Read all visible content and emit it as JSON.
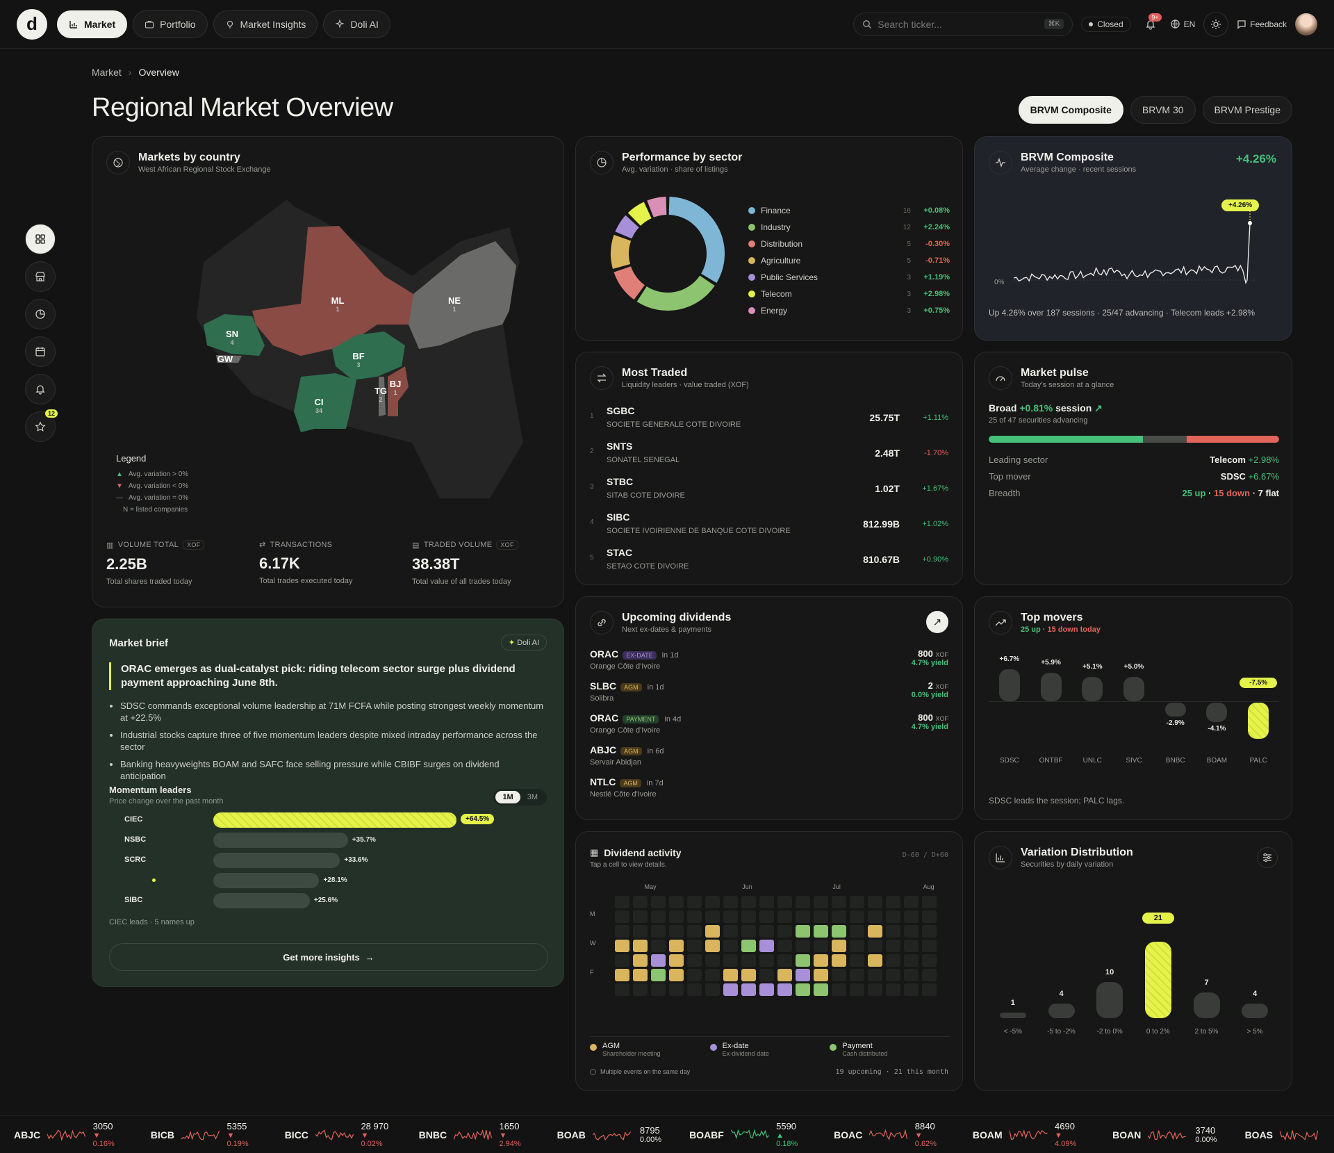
{
  "nav": {
    "logo": "d",
    "tabs": [
      {
        "label": "Market",
        "active": true
      },
      {
        "label": "Portfolio"
      },
      {
        "label": "Market Insights"
      },
      {
        "label": "Doli AI"
      }
    ],
    "search_placeholder": "Search ticker...",
    "search_kbd": "⌘K",
    "market_status": "Closed",
    "notif_badge": "9+",
    "lang": "EN",
    "feedback": "Feedback"
  },
  "sidebar": {
    "favorites_count": "12"
  },
  "breadcrumb": {
    "root": "Market",
    "current": "Overview"
  },
  "page_title": "Regional Market Overview",
  "index_tabs": [
    {
      "label": "BRVM Composite",
      "active": true
    },
    {
      "label": "BRVM 30"
    },
    {
      "label": "BRVM Prestige"
    }
  ],
  "markets": {
    "title": "Markets by country",
    "subtitle": "West African Regional Stock Exchange",
    "countries": [
      {
        "code": "ML",
        "n": "1",
        "state": "down"
      },
      {
        "code": "NE",
        "n": "1",
        "state": "flat"
      },
      {
        "code": "SN",
        "n": "4",
        "state": "up"
      },
      {
        "code": "GW",
        "n": "",
        "state": "flat"
      },
      {
        "code": "BF",
        "n": "3",
        "state": "up"
      },
      {
        "code": "CI",
        "n": "34",
        "state": "up"
      },
      {
        "code": "TG",
        "n": "2",
        "state": "flat"
      },
      {
        "code": "BJ",
        "n": "1",
        "state": "down"
      }
    ],
    "legend": {
      "title": "Legend",
      "up": "Avg. variation > 0%",
      "down": "Avg. variation < 0%",
      "flat": "Avg. variation = 0%",
      "note": "N = listed companies"
    },
    "stats": [
      {
        "label": "Volume total",
        "tag": "XOF",
        "value": "2.25B",
        "desc": "Total shares traded today"
      },
      {
        "label": "Transactions",
        "tag": "",
        "value": "6.17K",
        "desc": "Total trades executed today"
      },
      {
        "label": "Traded volume",
        "tag": "XOF",
        "value": "38.38T",
        "desc": "Total value of all trades today"
      }
    ]
  },
  "sectors": {
    "title": "Performance by sector",
    "subtitle": "Avg. variation · share of listings",
    "items": [
      {
        "name": "Finance",
        "count": 16,
        "change": "+0.08%",
        "color": "#7fb6d6"
      },
      {
        "name": "Industry",
        "count": 12,
        "change": "+2.24%",
        "color": "#8dc46f"
      },
      {
        "name": "Distribution",
        "count": 5,
        "change": "-0.30%",
        "color": "#e07f78"
      },
      {
        "name": "Agriculture",
        "count": 5,
        "change": "-0.71%",
        "color": "#d9b55e"
      },
      {
        "name": "Public Services",
        "count": 3,
        "change": "+1.19%",
        "color": "#a890d8"
      },
      {
        "name": "Telecom",
        "count": 3,
        "change": "+2.98%",
        "color": "#e4f24a"
      },
      {
        "name": "Energy",
        "count": 3,
        "change": "+0.75%",
        "color": "#d98fb6"
      }
    ]
  },
  "composite": {
    "title": "BRVM Composite",
    "subtitle": "Average change · recent sessions",
    "change": "+4.26%",
    "tooltip": "+4.26%",
    "zero_label": "0%",
    "summary": "Up 4.26% over 187 sessions · 25/47 advancing · Telecom leads +2.98%"
  },
  "most_traded": {
    "title": "Most Traded",
    "subtitle": "Liquidity leaders · value traded (XOF)",
    "rows": [
      {
        "rank": "1",
        "ticker": "SGBC",
        "name": "SOCIETE GENERALE COTE DIVOIRE",
        "value": "25.75T",
        "change": "+1.11%"
      },
      {
        "rank": "2",
        "ticker": "SNTS",
        "name": "SONATEL SENEGAL",
        "value": "2.48T",
        "change": "-1.70%"
      },
      {
        "rank": "3",
        "ticker": "STBC",
        "name": "SITAB COTE DIVOIRE",
        "value": "1.02T",
        "change": "+1.67%"
      },
      {
        "rank": "4",
        "ticker": "SIBC",
        "name": "SOCIETE IVOIRIENNE DE BANQUE COTE DIVOIRE",
        "value": "812.99B",
        "change": "+1.02%"
      },
      {
        "rank": "5",
        "ticker": "STAC",
        "name": "SETAO COTE DIVOIRE",
        "value": "810.67B",
        "change": "+0.90%"
      }
    ]
  },
  "pulse": {
    "title": "Market pulse",
    "subtitle": "Today's session at a glance",
    "headline_a": "Broad",
    "headline_b": "+0.81%",
    "headline_c": "session",
    "advancing": "25 of 47 securities advancing",
    "leading_label": "Leading sector",
    "leading_value": "Telecom",
    "leading_change": "+2.98%",
    "mover_label": "Top mover",
    "mover_value": "SDSC",
    "mover_change": "+6.67%",
    "breadth_label": "Breadth",
    "up": "25 up",
    "sep1": "·",
    "down": "15 down",
    "sep2": "·",
    "flat": "7 flat",
    "bar": {
      "up": 25,
      "flat": 7,
      "down": 15
    }
  },
  "brief": {
    "title": "Market brief",
    "tag": "Doli AI",
    "headline": "ORAC emerges as dual-catalyst pick: riding telecom sector surge plus dividend payment approaching June 8th.",
    "bullets": [
      "SDSC commands exceptional volume leadership at 71M FCFA while posting strongest weekly momentum at +22.5%",
      "Industrial stocks capture three of five momentum leaders despite mixed intraday performance across the sector",
      "Banking heavyweights BOAM and SAFC face selling pressure while CBIBF surges on dividend anticipation"
    ],
    "momentum_title": "Momentum leaders",
    "momentum_sub": "Price change over the past month",
    "periods": [
      "1M",
      "3M"
    ],
    "leaders": [
      {
        "name": "CIEC",
        "value": 64.5,
        "label": "+64.5%"
      },
      {
        "name": "NSBC",
        "value": 35.7,
        "label": "+35.7%"
      },
      {
        "name": "SCRC",
        "value": 33.6,
        "label": "+33.6%"
      },
      {
        "name": "",
        "value": 28.1,
        "label": "+28.1%"
      },
      {
        "name": "SIBC",
        "value": 25.6,
        "label": "+25.6%"
      }
    ],
    "footer": "CIEC leads · 5 names up",
    "cta": "Get more insights"
  },
  "dividends": {
    "title": "Upcoming dividends",
    "subtitle": "Next ex-dates & payments",
    "rows": [
      {
        "ticker": "ORAC",
        "tag": "EX-DATE",
        "when": "in 1d",
        "name": "Orange Côte d'Ivoire",
        "amount": "800",
        "unit": "XOF",
        "yield": "4.7% yield"
      },
      {
        "ticker": "SLBC",
        "tag": "AGM",
        "when": "in 1d",
        "name": "Solibra",
        "amount": "2",
        "unit": "XOF",
        "yield": "0.0% yield"
      },
      {
        "ticker": "ORAC",
        "tag": "PAYMENT",
        "when": "in 4d",
        "name": "Orange Côte d'Ivoire",
        "amount": "800",
        "unit": "XOF",
        "yield": "4.7% yield"
      },
      {
        "ticker": "ABJC",
        "tag": "AGM",
        "when": "in 6d",
        "name": "Servair Abidjan",
        "amount": "",
        "unit": "",
        "yield": ""
      },
      {
        "ticker": "NTLC",
        "tag": "AGM",
        "when": "in 7d",
        "name": "Nestlé Côte d'Ivoire",
        "amount": "",
        "unit": "",
        "yield": ""
      }
    ]
  },
  "movers": {
    "title": "Top movers",
    "up": "25 up",
    "sep": "·",
    "down": "15 down today",
    "items": [
      {
        "t": "SDSC",
        "v": 6.7,
        "l": "+6.7%"
      },
      {
        "t": "ONTBF",
        "v": 5.9,
        "l": "+5.9%"
      },
      {
        "t": "UNLC",
        "v": 5.1,
        "l": "+5.1%"
      },
      {
        "t": "SIVC",
        "v": 5.0,
        "l": "+5.0%"
      },
      {
        "t": "BNBC",
        "v": -2.9,
        "l": "-2.9%"
      },
      {
        "t": "BOAM",
        "v": -4.1,
        "l": "-4.1%"
      },
      {
        "t": "PALC",
        "v": -7.5,
        "l": "-7.5%"
      }
    ],
    "footer": "SDSC leads the session; PALC lags."
  },
  "div_activity": {
    "title": "Dividend activity",
    "subtitle": "Tap a cell to view details.",
    "range": "D-60 / D+60",
    "months": [
      "May",
      "Jun",
      "Jul",
      "Aug"
    ],
    "days": [
      "M",
      "W",
      "F"
    ],
    "legend": [
      {
        "label": "AGM",
        "sub": "Shareholder meeting",
        "color": "#d9b55e"
      },
      {
        "label": "Ex-date",
        "sub": "Ex-dividend date",
        "color": "#a890d8"
      },
      {
        "label": "Payment",
        "sub": "Cash distributed",
        "color": "#8dc46f"
      }
    ],
    "multi": "Multiple events on the same day",
    "summary": "19 upcoming · 21 this month"
  },
  "variation": {
    "title": "Variation Distribution",
    "subtitle": "Securities by daily variation",
    "bins": [
      {
        "label": "< -5%",
        "count": 1
      },
      {
        "label": "-5 to -2%",
        "count": 4
      },
      {
        "label": "-2 to 0%",
        "count": 10
      },
      {
        "label": "0 to 2%",
        "count": 21
      },
      {
        "label": "2 to 5%",
        "count": 7
      },
      {
        "label": "> 5%",
        "count": 4
      }
    ]
  },
  "ticker": [
    {
      "s": "ABJC",
      "p": "3050",
      "c": "▼ 0.16%",
      "dir": "down"
    },
    {
      "s": "BICB",
      "p": "5355",
      "c": "▼ 0.19%",
      "dir": "down"
    },
    {
      "s": "BICC",
      "p": "28 970",
      "c": "▼ 0.02%",
      "dir": "down"
    },
    {
      "s": "BNBC",
      "p": "1650",
      "c": "▼ 2.94%",
      "dir": "down"
    },
    {
      "s": "BOAB",
      "p": "8795",
      "c": "0.00%",
      "dir": "flat"
    },
    {
      "s": "BOABF",
      "p": "5590",
      "c": "▲ 0.18%",
      "dir": "up"
    },
    {
      "s": "BOAC",
      "p": "8840",
      "c": "▼ 0.62%",
      "dir": "down"
    },
    {
      "s": "BOAM",
      "p": "4690",
      "c": "▼ 4.09%",
      "dir": "down"
    },
    {
      "s": "BOAN",
      "p": "3740",
      "c": "0.00%",
      "dir": "flat"
    },
    {
      "s": "BOAS",
      "p": "",
      "c": "",
      "dir": "down"
    }
  ],
  "colors": {
    "accent": "#e4f24a",
    "up": "#47c07a",
    "down": "#e2655b",
    "card": "#161716"
  }
}
